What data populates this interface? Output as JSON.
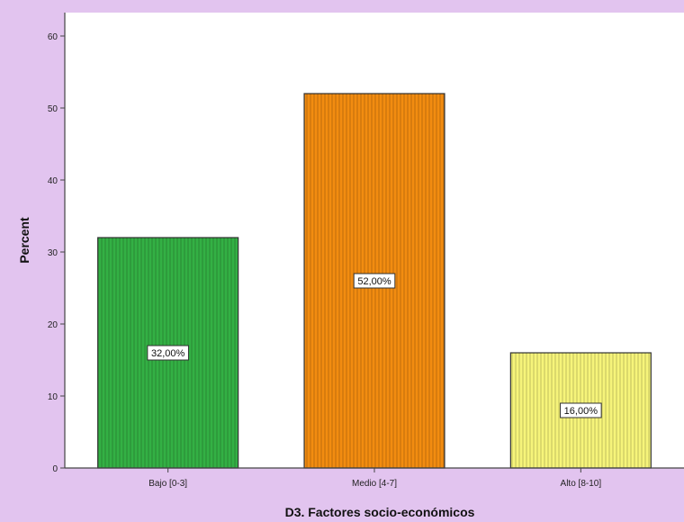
{
  "chart_data": {
    "type": "bar",
    "title": "",
    "xlabel": "D3. Factores socio-económicos",
    "ylabel": "Percent",
    "categories": [
      "Bajo [0-3]",
      "Medio [4-7]",
      "Alto [8-10]"
    ],
    "values": [
      32,
      52,
      16
    ],
    "data_labels": [
      "32,00%",
      "52,00%",
      "16,00%"
    ],
    "bar_colors": [
      "#33b044",
      "#f28c10",
      "#f6f47a"
    ],
    "bar_pattern": "vertical-lines",
    "ylim": [
      0,
      60
    ],
    "yticks": [
      0,
      10,
      20,
      30,
      40,
      50,
      60
    ],
    "grid": false,
    "legend": "none"
  },
  "colors": {
    "page_background": "#e2c4ef",
    "plot_background": "#ffffff",
    "axis": "#444444"
  }
}
